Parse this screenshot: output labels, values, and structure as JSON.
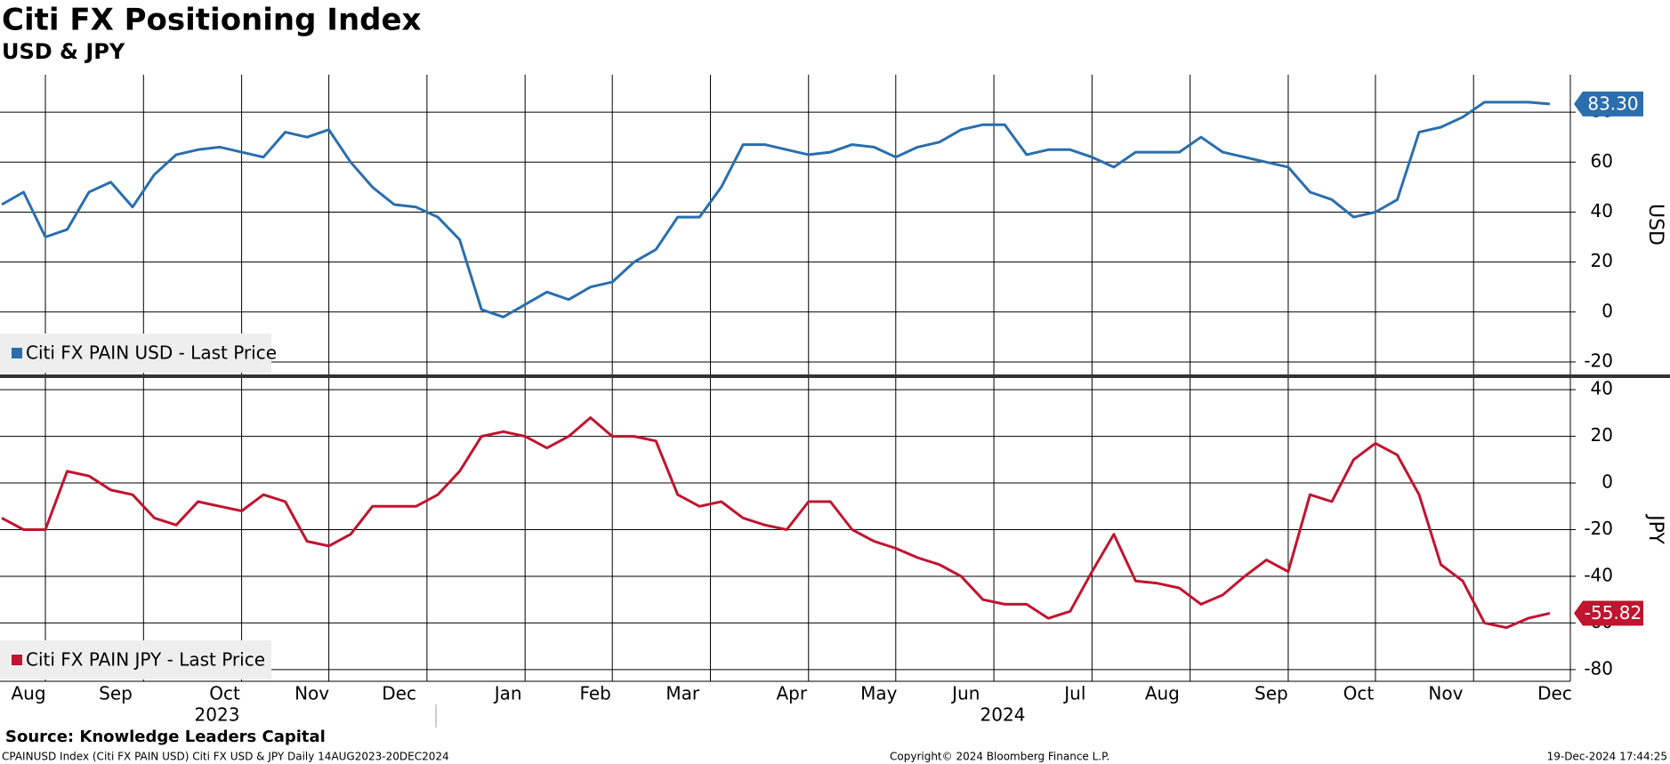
{
  "chart_data": {
    "type": "line",
    "title": "Citi FX Positioning Index",
    "subtitle": "USD & JPY",
    "categories": [
      "Aug",
      null,
      null,
      null,
      "Sep",
      null,
      null,
      null,
      null,
      "Oct",
      null,
      null,
      null,
      "Nov",
      null,
      null,
      null,
      "Dec",
      null,
      null,
      null,
      null,
      "Jan",
      null,
      null,
      null,
      "Feb",
      null,
      null,
      null,
      "Mar",
      null,
      null,
      null,
      null,
      "Apr",
      null,
      null,
      null,
      "May",
      null,
      null,
      null,
      "Jun",
      null,
      null,
      null,
      null,
      "Jul",
      null,
      null,
      null,
      "Aug",
      null,
      null,
      null,
      null,
      "Sep",
      null,
      null,
      null,
      "Oct",
      null,
      null,
      null,
      "Nov",
      null,
      null,
      null,
      null,
      "Dec",
      null
    ],
    "year_labels": [
      "2023",
      "2024"
    ],
    "grid": true,
    "series": [
      {
        "name": "Citi FX PAIN USD - Last Price",
        "color": "#2a6ead",
        "axis_label": "USD",
        "last_label": "83.30",
        "ylim": [
          -25,
          95
        ],
        "yticks": [
          -20,
          0,
          20,
          40,
          60,
          80
        ],
        "values": [
          43,
          48,
          30,
          33,
          48,
          52,
          42,
          55,
          63,
          65,
          66,
          64,
          62,
          72,
          70,
          73,
          60,
          50,
          43,
          42,
          38,
          29,
          1,
          -2,
          3,
          8,
          5,
          10,
          12,
          20,
          25,
          38,
          38,
          50,
          67,
          67,
          65,
          63,
          64,
          67,
          66,
          62,
          66,
          68,
          73,
          75,
          75,
          63,
          65,
          65,
          62,
          58,
          64,
          64,
          64,
          70,
          64,
          62,
          60,
          58,
          48,
          45,
          38,
          40,
          45,
          72,
          74,
          78,
          84,
          84,
          84,
          83.3
        ]
      },
      {
        "name": "Citi FX PAIN JPY - Last Price",
        "color": "#c0142f",
        "axis_label": "JPY",
        "last_label": "-55.82",
        "ylim": [
          -85,
          45
        ],
        "yticks": [
          -80,
          -60,
          -40,
          -20,
          0,
          20,
          40
        ],
        "values": [
          -15,
          -20,
          -20,
          5,
          3,
          -3,
          -5,
          -15,
          -18,
          -8,
          -10,
          -12,
          -5,
          -8,
          -25,
          -27,
          -22,
          -10,
          -10,
          -10,
          -5,
          5,
          20,
          22,
          20,
          15,
          20,
          28,
          20,
          20,
          18,
          -5,
          -10,
          -8,
          -15,
          -18,
          -20,
          -8,
          -8,
          -20,
          -25,
          -28,
          -32,
          -35,
          -40,
          -50,
          -52,
          -52,
          -58,
          -55,
          -38,
          -22,
          -42,
          -43,
          -45,
          -52,
          -48,
          -40,
          -33,
          -38,
          -5,
          -8,
          10,
          17,
          12,
          -5,
          -35,
          -42,
          -60,
          -62,
          -58,
          -55.82
        ]
      }
    ],
    "source": "Source: Knowledge Leaders Capital",
    "footer_left": "CPAINUSD Index (Citi FX PAIN USD) Citi FX USD & JPY  Daily 14AUG2023-20DEC2024",
    "footer_center": "Copyright© 2024 Bloomberg Finance L.P.",
    "footer_right": "19-Dec-2024 17:44:25"
  }
}
